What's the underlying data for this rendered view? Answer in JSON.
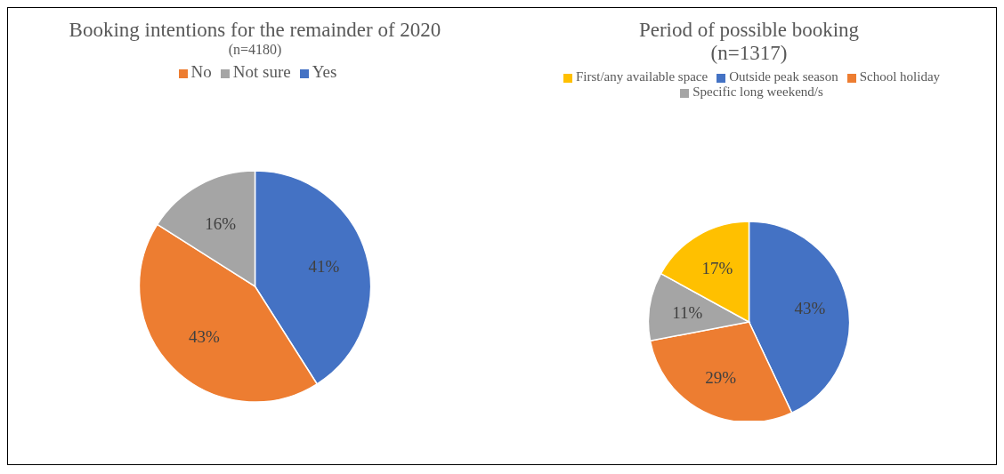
{
  "chart_data": [
    {
      "type": "pie",
      "title": "Booking intentions for the remainder of 2020",
      "subtitle": "(n=4180)",
      "categories": [
        "Yes",
        "No",
        "Not sure"
      ],
      "values": [
        41,
        43,
        16
      ],
      "value_labels": [
        "41%",
        "43%",
        "16%"
      ],
      "colors": [
        "#4472c4",
        "#ed7d31",
        "#a5a5a5"
      ],
      "legend": "top"
    },
    {
      "type": "pie",
      "title": "Period of possible booking",
      "subtitle": "(n=1317)",
      "categories": [
        "Outside peak season",
        "School holiday",
        "Specific long weekend/s",
        "First/any available space"
      ],
      "values": [
        43,
        29,
        11,
        17
      ],
      "value_labels": [
        "43%",
        "29%",
        "11%",
        "17%"
      ],
      "colors": [
        "#4472c4",
        "#ed7d31",
        "#a5a5a5",
        "#ffc000"
      ],
      "legend": "top"
    }
  ]
}
